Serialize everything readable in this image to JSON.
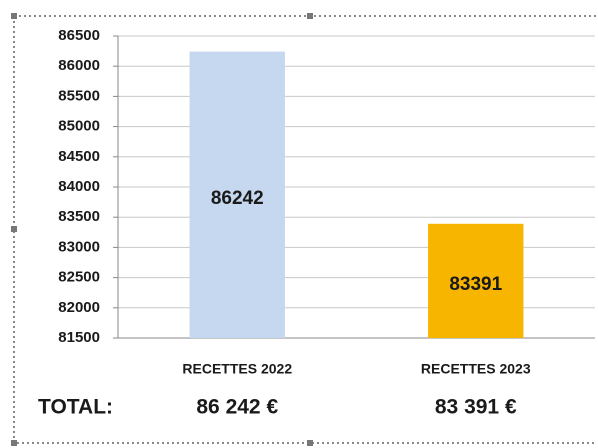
{
  "chart_data": {
    "type": "bar",
    "categories": [
      "RECETTES 2022",
      "RECETTES 2023"
    ],
    "values": [
      86242,
      83391
    ],
    "colors": [
      "#c6d8f0",
      "#f7b500"
    ],
    "ylim": [
      81500,
      86500
    ],
    "yticks": [
      81500,
      82000,
      82500,
      83000,
      83500,
      84000,
      84500,
      85000,
      85500,
      86000,
      86500
    ],
    "grid": true,
    "total_label": "TOTAL:",
    "total_texts": [
      "86 242 €",
      "83 391 €"
    ]
  }
}
